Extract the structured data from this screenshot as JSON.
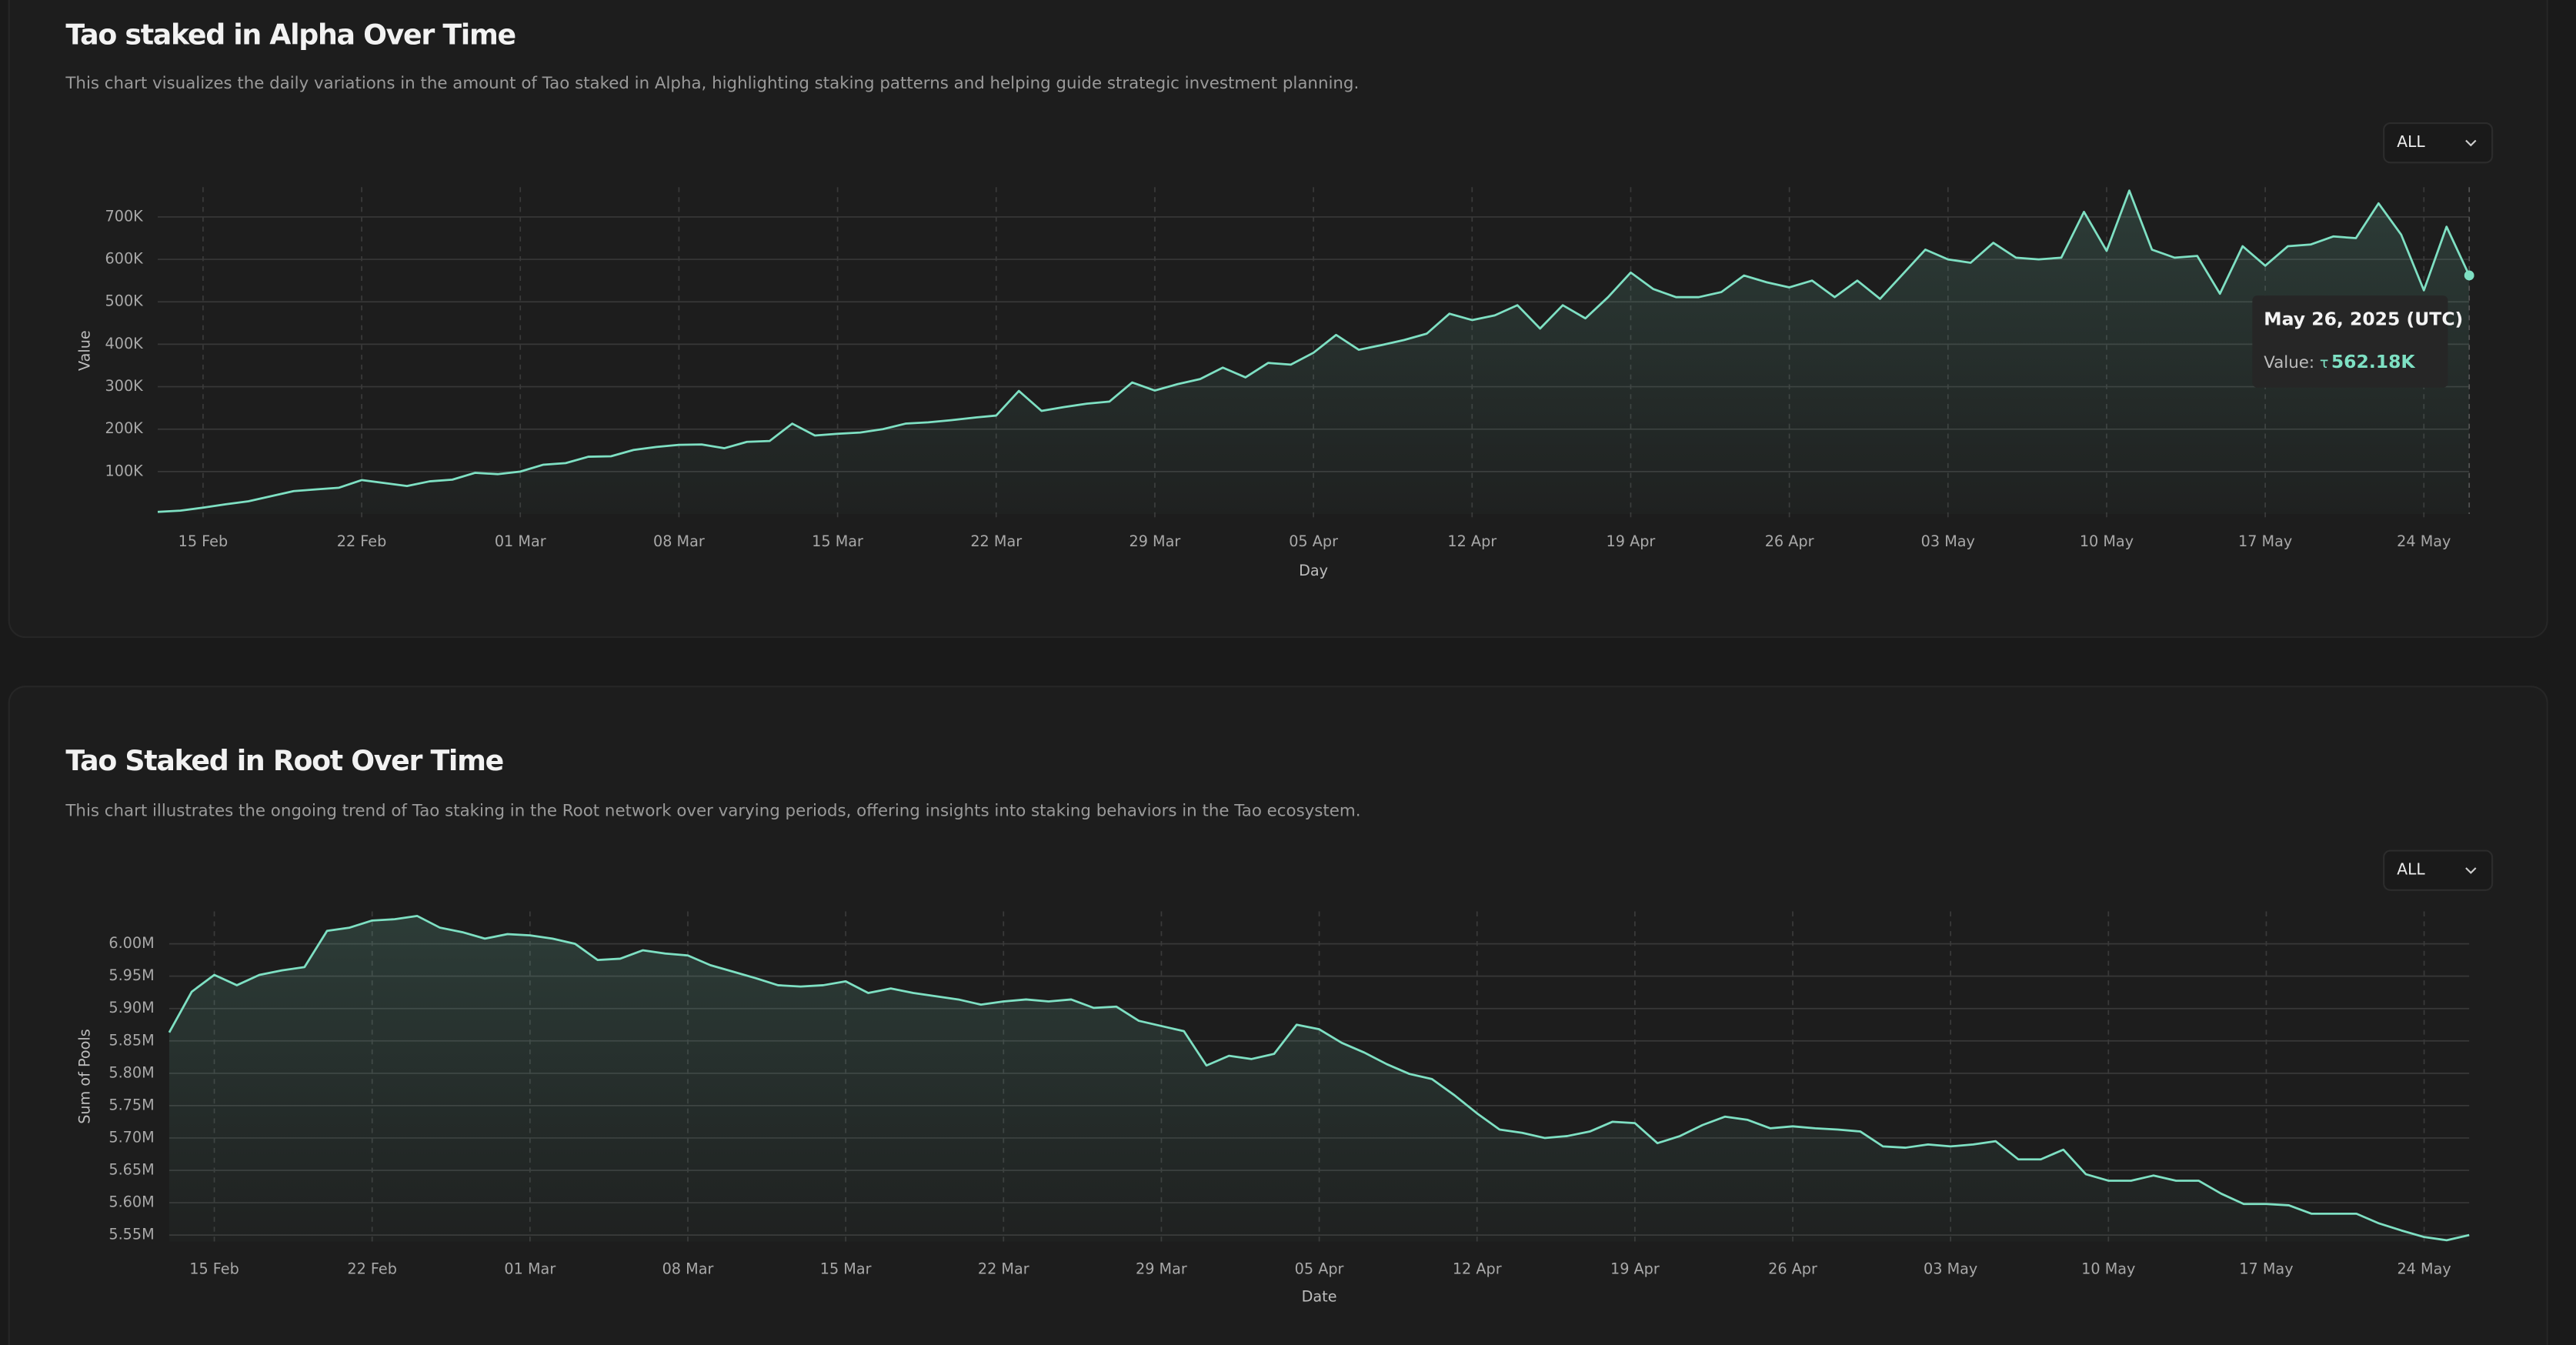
{
  "chart_data": [
    {
      "type": "line",
      "title": "Tao staked in Alpha Over Time",
      "description": "This chart visualizes the daily variations in the amount of Tao staked in Alpha, highlighting staking patterns and helping guide strategic investment planning.",
      "filter": "ALL",
      "xlabel": "Day",
      "ylabel": "Value",
      "color": "#7ee0c3",
      "categories": [
        null,
        null,
        "15 Feb",
        null,
        null,
        null,
        null,
        null,
        null,
        "22 Feb",
        null,
        null,
        null,
        null,
        null,
        null,
        "01 Mar",
        null,
        null,
        null,
        null,
        null,
        null,
        "08 Mar",
        null,
        null,
        null,
        null,
        null,
        null,
        "15 Mar",
        null,
        null,
        null,
        null,
        null,
        null,
        "22 Mar",
        null,
        null,
        null,
        null,
        null,
        null,
        "29 Mar",
        null,
        null,
        null,
        null,
        null,
        null,
        "05 Apr",
        null,
        null,
        null,
        null,
        null,
        null,
        "12 Apr",
        null,
        null,
        null,
        null,
        null,
        null,
        "19 Apr",
        null,
        null,
        null,
        null,
        null,
        null,
        "26 Apr",
        null,
        null,
        null,
        null,
        null,
        null,
        "03 May",
        null,
        null,
        null,
        null,
        null,
        null,
        "10 May",
        null,
        null,
        null,
        null,
        null,
        null,
        "17 May",
        null,
        null,
        null,
        null,
        null,
        null,
        "24 May",
        null,
        null
      ],
      "values": [
        5000,
        8000,
        15000,
        23000,
        30000,
        42000,
        54000,
        58000,
        62000,
        80000,
        73000,
        66000,
        77000,
        81000,
        97000,
        94000,
        100000,
        116000,
        120000,
        135000,
        136000,
        151000,
        158000,
        163000,
        164000,
        155000,
        170000,
        172000,
        213000,
        185000,
        189000,
        192000,
        200000,
        213000,
        216000,
        221000,
        227000,
        232000,
        290000,
        243000,
        252000,
        260000,
        265000,
        310000,
        291000,
        306000,
        318000,
        345000,
        322000,
        356000,
        352000,
        380000,
        422000,
        387000,
        398000,
        410000,
        425000,
        472000,
        457000,
        468000,
        492000,
        437000,
        492000,
        461000,
        511000,
        569000,
        530000,
        511000,
        511000,
        523000,
        562000,
        546000,
        534000,
        550000,
        511000,
        550000,
        507000,
        565000,
        623000,
        600000,
        592000,
        639000,
        604000,
        600000,
        604000,
        712000,
        620000,
        762000,
        623000,
        604000,
        608000,
        519000,
        631000,
        585000,
        631000,
        635000,
        654000,
        650000,
        732000,
        658000,
        527000,
        677000,
        562180
      ],
      "ylim": [
        0,
        770000
      ],
      "yticks": [
        {
          "value": 100000,
          "label": "100K"
        },
        {
          "value": 200000,
          "label": "200K"
        },
        {
          "value": 300000,
          "label": "300K"
        },
        {
          "value": 400000,
          "label": "400K"
        },
        {
          "value": 500000,
          "label": "500K"
        },
        {
          "value": 600000,
          "label": "600K"
        },
        {
          "value": 700000,
          "label": "700K"
        }
      ],
      "grid": true,
      "tooltip": {
        "date": "May 26, 2025 (UTC)",
        "label": "Value:",
        "unit": "τ",
        "value_label": "562.18K"
      }
    },
    {
      "type": "line",
      "title": "Tao Staked in Root Over Time",
      "description": "This chart illustrates the ongoing trend of Tao staking in the Root network over varying periods, offering insights into staking behaviors in the Tao ecosystem.",
      "filter": "ALL",
      "xlabel": "Date",
      "ylabel": "Sum of Pools",
      "color": "#7ee0c3",
      "categories": [
        null,
        null,
        "15 Feb",
        null,
        null,
        null,
        null,
        null,
        null,
        "22 Feb",
        null,
        null,
        null,
        null,
        null,
        null,
        "01 Mar",
        null,
        null,
        null,
        null,
        null,
        null,
        "08 Mar",
        null,
        null,
        null,
        null,
        null,
        null,
        "15 Mar",
        null,
        null,
        null,
        null,
        null,
        null,
        "22 Mar",
        null,
        null,
        null,
        null,
        null,
        null,
        "29 Mar",
        null,
        null,
        null,
        null,
        null,
        null,
        "05 Apr",
        null,
        null,
        null,
        null,
        null,
        null,
        "12 Apr",
        null,
        null,
        null,
        null,
        null,
        null,
        "19 Apr",
        null,
        null,
        null,
        null,
        null,
        null,
        "26 Apr",
        null,
        null,
        null,
        null,
        null,
        null,
        "03 May",
        null,
        null,
        null,
        null,
        null,
        null,
        "10 May",
        null,
        null,
        null,
        null,
        null,
        null,
        "17 May",
        null,
        null,
        null,
        null,
        null,
        null,
        "24 May",
        null,
        null
      ],
      "values": [
        5863000,
        5926000,
        5952000,
        5936000,
        5952000,
        5959000,
        5964000,
        6020000,
        6025000,
        6036000,
        6038000,
        6043000,
        6025000,
        6018000,
        6008000,
        6015000,
        6013000,
        6008000,
        6000000,
        5975000,
        5977000,
        5990000,
        5985000,
        5982000,
        5967000,
        5957000,
        5947000,
        5936000,
        5934000,
        5936000,
        5942000,
        5924000,
        5931000,
        5924000,
        5919000,
        5914000,
        5906000,
        5911000,
        5914000,
        5911000,
        5914000,
        5901000,
        5903000,
        5881000,
        5873000,
        5865000,
        5812000,
        5827000,
        5822000,
        5830000,
        5875000,
        5868000,
        5847000,
        5832000,
        5814000,
        5799000,
        5791000,
        5766000,
        5738000,
        5713000,
        5708000,
        5700000,
        5703000,
        5710000,
        5725000,
        5723000,
        5692000,
        5703000,
        5720000,
        5733000,
        5728000,
        5715000,
        5718000,
        5715000,
        5713000,
        5710000,
        5687000,
        5685000,
        5690000,
        5687000,
        5690000,
        5695000,
        5667000,
        5667000,
        5682000,
        5644000,
        5634000,
        5634000,
        5642000,
        5634000,
        5634000,
        5614000,
        5598000,
        5598000,
        5596000,
        5583000,
        5583000,
        5583000,
        5568000,
        5557000,
        5547000,
        5542000,
        5550000
      ],
      "ylim": [
        5540000,
        6050000
      ],
      "yticks": [
        {
          "value": 5550000,
          "label": "5.55M"
        },
        {
          "value": 5600000,
          "label": "5.60M"
        },
        {
          "value": 5650000,
          "label": "5.65M"
        },
        {
          "value": 5700000,
          "label": "5.70M"
        },
        {
          "value": 5750000,
          "label": "5.75M"
        },
        {
          "value": 5800000,
          "label": "5.80M"
        },
        {
          "value": 5850000,
          "label": "5.85M"
        },
        {
          "value": 5900000,
          "label": "5.90M"
        },
        {
          "value": 5950000,
          "label": "5.95M"
        },
        {
          "value": 6000000,
          "label": "6.00M"
        }
      ],
      "grid": true
    }
  ]
}
